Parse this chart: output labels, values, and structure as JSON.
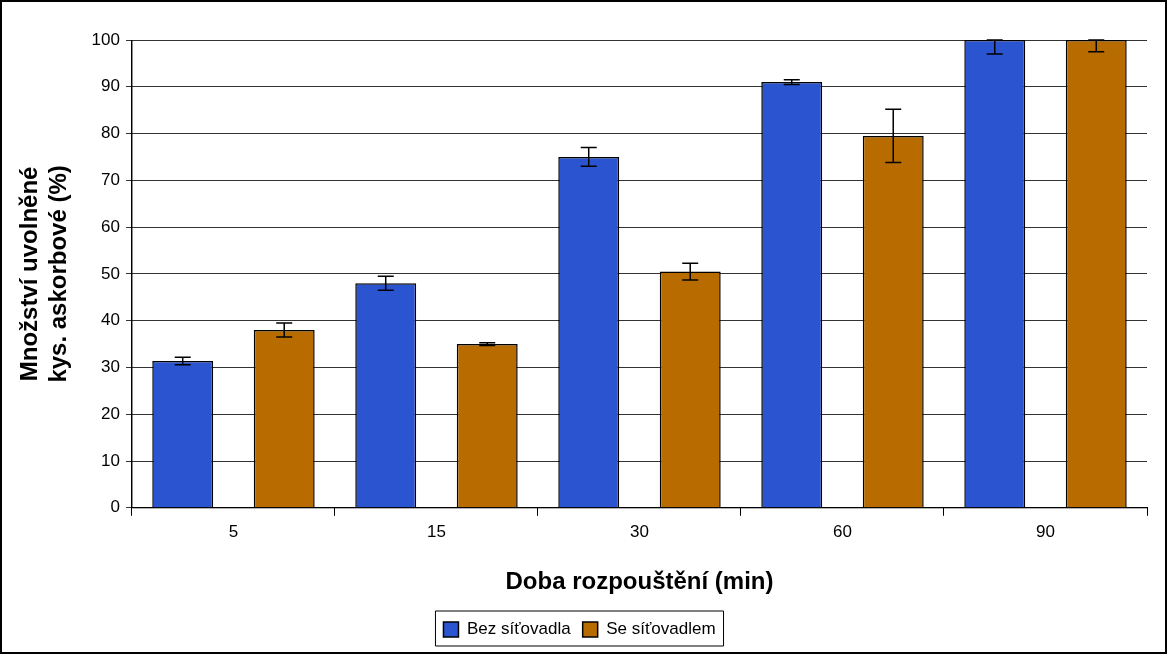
{
  "chart_data": {
    "type": "bar",
    "xlabel": "Doba rozpouštění (min)",
    "ylabel": "Množství uvolněné\nkys. askorbové (%)",
    "categories": [
      "5",
      "15",
      "30",
      "60",
      "90"
    ],
    "series": [
      {
        "name": "Bez síťovadla",
        "color": "#2b55d0",
        "values": [
          31.4,
          48,
          75,
          91,
          100
        ],
        "errors": [
          0.8,
          1.5,
          2,
          0.5,
          [
            97,
            100
          ]
        ]
      },
      {
        "name": "Se síťovadlem",
        "color": "#b86c00",
        "values": [
          38,
          35,
          50.5,
          79.5,
          100
        ],
        "errors": [
          1.5,
          0.3,
          1.8,
          5.7,
          [
            97.5,
            100
          ]
        ]
      }
    ],
    "ylim": [
      0,
      100
    ],
    "yticks": [
      0,
      10,
      20,
      30,
      40,
      50,
      60,
      70,
      80,
      90,
      100
    ],
    "grid": "y",
    "legend": "bottom"
  }
}
